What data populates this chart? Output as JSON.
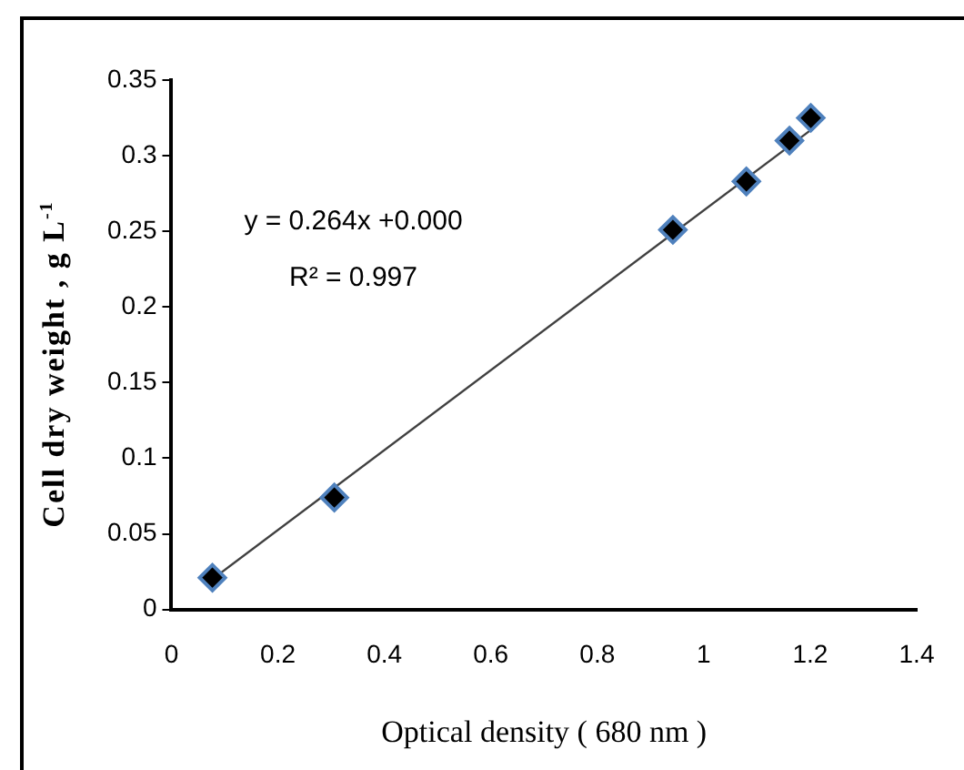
{
  "chart_data": {
    "type": "scatter",
    "xlabel": "Optical density ( 680 nm )",
    "ylabel": "Cell dry weight  , g L$^{-1}$",
    "annotations": [
      "y = 0.264x +0.000",
      "R² = 0.997"
    ],
    "series": [
      {
        "color": "#000000",
        "x": [
          0.077,
          0.306,
          0.942,
          1.08,
          1.161,
          1.201
        ],
        "values": [
          0.021,
          0.074,
          0.251,
          0.283,
          0.31,
          0.325
        ]
      },
      {
        "type": "line",
        "color": "#404040",
        "x": [
          0.077,
          1.201
        ],
        "values": [
          0.02,
          0.317
        ],
        "marker": "none"
      }
    ],
    "marker": "diamond",
    "line_style": "solid",
    "xlim": [
      0,
      1.4
    ],
    "xticks": [
      0,
      0.2,
      0.4,
      0.6,
      0.8,
      1,
      1.2,
      1.4
    ],
    "ylim": [
      0,
      0.35
    ],
    "yticks": [
      0,
      0.05,
      0.1,
      0.15,
      0.2,
      0.25,
      0.3,
      0.35
    ],
    "grid": false,
    "legend": false
  }
}
